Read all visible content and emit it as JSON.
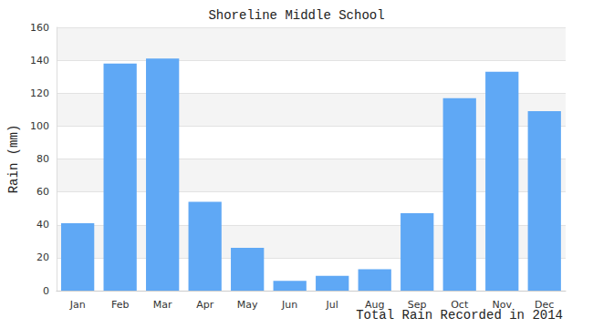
{
  "chart_data": {
    "type": "bar",
    "title": "Shoreline Middle School",
    "x_label": "Total Rain Recorded in 2014",
    "y_label": "Rain (mm)",
    "categories": [
      "Jan",
      "Feb",
      "Mar",
      "Apr",
      "May",
      "Jun",
      "Jul",
      "Aug",
      "Sep",
      "Oct",
      "Nov",
      "Dec"
    ],
    "values": [
      41,
      138,
      141,
      54,
      26,
      6,
      9,
      13,
      47,
      117,
      133,
      109
    ],
    "color": "#5fa8f5",
    "ylim": [
      0,
      160
    ],
    "yticks": [
      0,
      20,
      40,
      60,
      80,
      100,
      120,
      140,
      160
    ],
    "grid": true
  }
}
